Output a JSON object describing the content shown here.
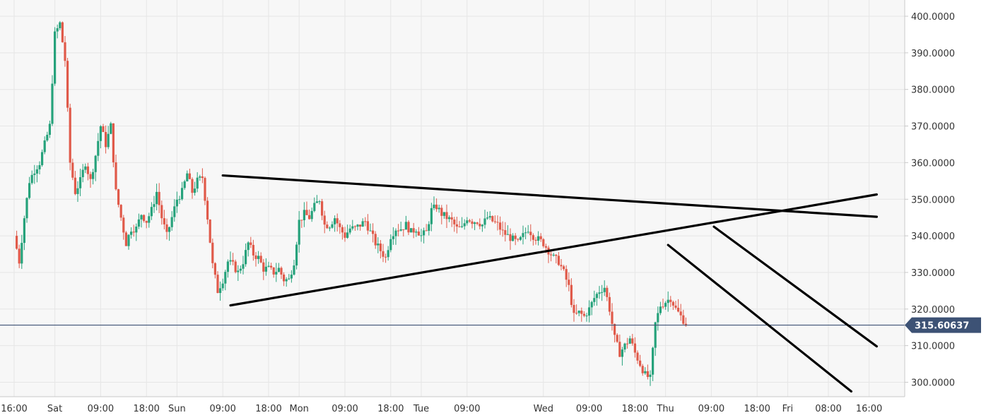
{
  "chart_data": {
    "type": "candlestick",
    "title": "",
    "xlabel": "",
    "ylabel": "",
    "ylim": [
      297,
      403
    ],
    "grid": true,
    "colors": {
      "up": "#26a27b",
      "down": "#e05a4a",
      "trendline": "#000000",
      "current_price_line": "#3d5275",
      "current_price_tag": "#3d5275",
      "grid": "#e6e6e6",
      "plot_background": "#f7f7f7"
    },
    "y_ticks": [
      "300.0000",
      "310.0000",
      "320.0000",
      "330.0000",
      "340.0000",
      "350.0000",
      "360.0000",
      "370.0000",
      "380.0000",
      "390.0000",
      "400.0000"
    ],
    "y_tick_values": [
      300,
      310,
      320,
      330,
      340,
      350,
      360,
      370,
      380,
      390,
      400
    ],
    "x_ticks": [
      {
        "label": "16:00",
        "hour": 0
      },
      {
        "label": "Sat",
        "hour": 8
      },
      {
        "label": "09:00",
        "hour": 17
      },
      {
        "label": "18:00",
        "hour": 26
      },
      {
        "label": "Sun",
        "hour": 32
      },
      {
        "label": "09:00",
        "hour": 41
      },
      {
        "label": "18:00",
        "hour": 50
      },
      {
        "label": "Mon",
        "hour": 56
      },
      {
        "label": "09:00",
        "hour": 65
      },
      {
        "label": "18:00",
        "hour": 74
      },
      {
        "label": "Tue",
        "hour": 80
      },
      {
        "label": "09:00",
        "hour": 89
      },
      {
        "label": "Wed",
        "hour": 104
      },
      {
        "label": "09:00",
        "hour": 113
      },
      {
        "label": "18:00",
        "hour": 122
      },
      {
        "label": "Thu",
        "hour": 128
      },
      {
        "label": "09:00",
        "hour": 137
      },
      {
        "label": "18:00",
        "hour": 146
      },
      {
        "label": "Fri",
        "hour": 152
      },
      {
        "label": "08:00",
        "hour": 160
      },
      {
        "label": "16:00",
        "hour": 168
      }
    ],
    "current_price": 315.60637,
    "current_price_label": "315.60637",
    "candle_hour_step": 0.5,
    "candle_close_anchors": [
      [
        0,
        340
      ],
      [
        1,
        333
      ],
      [
        2,
        345
      ],
      [
        3,
        355
      ],
      [
        4,
        358
      ],
      [
        5,
        360
      ],
      [
        6,
        365
      ],
      [
        7,
        370
      ],
      [
        8,
        395
      ],
      [
        9,
        398
      ],
      [
        10,
        388
      ],
      [
        11,
        360
      ],
      [
        12,
        352
      ],
      [
        13,
        355
      ],
      [
        14,
        360
      ],
      [
        15,
        355
      ],
      [
        16,
        362
      ],
      [
        17,
        370
      ],
      [
        18,
        365
      ],
      [
        19,
        370
      ],
      [
        20,
        352
      ],
      [
        21,
        345
      ],
      [
        22,
        338
      ],
      [
        23,
        342
      ],
      [
        24,
        342
      ],
      [
        25,
        346
      ],
      [
        26,
        344
      ],
      [
        27,
        347
      ],
      [
        28,
        352
      ],
      [
        29,
        345
      ],
      [
        30,
        340
      ],
      [
        31,
        345
      ],
      [
        32,
        350
      ],
      [
        33,
        352
      ],
      [
        34,
        357
      ],
      [
        35,
        352
      ],
      [
        36,
        355
      ],
      [
        37,
        356
      ],
      [
        38,
        345
      ],
      [
        39,
        332
      ],
      [
        40,
        325
      ],
      [
        41,
        328
      ],
      [
        42,
        333
      ],
      [
        43,
        332
      ],
      [
        44,
        330
      ],
      [
        45,
        333
      ],
      [
        46,
        338
      ],
      [
        47,
        335
      ],
      [
        48,
        334
      ],
      [
        49,
        331
      ],
      [
        50,
        331
      ],
      [
        51,
        330
      ],
      [
        52,
        331
      ],
      [
        53,
        328
      ],
      [
        54,
        328
      ],
      [
        55,
        333
      ],
      [
        56,
        344
      ],
      [
        57,
        346
      ],
      [
        58,
        345
      ],
      [
        59,
        348
      ],
      [
        60,
        350
      ],
      [
        61,
        343
      ],
      [
        62,
        343
      ],
      [
        63,
        345
      ],
      [
        64,
        342
      ],
      [
        65,
        340
      ],
      [
        66,
        342
      ],
      [
        67,
        342
      ],
      [
        68,
        343
      ],
      [
        69,
        344
      ],
      [
        70,
        341
      ],
      [
        71,
        338
      ],
      [
        72,
        336
      ],
      [
        73,
        334
      ],
      [
        74,
        340
      ],
      [
        75,
        342
      ],
      [
        76,
        342
      ],
      [
        77,
        343
      ],
      [
        78,
        341
      ],
      [
        79,
        342
      ],
      [
        80,
        340
      ],
      [
        81,
        341
      ],
      [
        82,
        347
      ],
      [
        83,
        348
      ],
      [
        84,
        346
      ],
      [
        85,
        345
      ],
      [
        86,
        344
      ],
      [
        87,
        342
      ],
      [
        88,
        342
      ],
      [
        89,
        345
      ],
      [
        90,
        344
      ],
      [
        91,
        344
      ],
      [
        92,
        343
      ],
      [
        93,
        345
      ],
      [
        94,
        344
      ],
      [
        95,
        343
      ],
      [
        96,
        341
      ],
      [
        97,
        340
      ],
      [
        98,
        339
      ],
      [
        99,
        338
      ],
      [
        100,
        340
      ],
      [
        101,
        342
      ],
      [
        102,
        340
      ],
      [
        103,
        339
      ],
      [
        104,
        338
      ],
      [
        105,
        336
      ],
      [
        106,
        334
      ],
      [
        107,
        333
      ],
      [
        108,
        330
      ],
      [
        109,
        326
      ],
      [
        110,
        318
      ],
      [
        111,
        319
      ],
      [
        112,
        318
      ],
      [
        113,
        320
      ],
      [
        114,
        323
      ],
      [
        115,
        325
      ],
      [
        116,
        326
      ],
      [
        117,
        320
      ],
      [
        118,
        312
      ],
      [
        119,
        308
      ],
      [
        120,
        310
      ],
      [
        121,
        312
      ],
      [
        122,
        308
      ],
      [
        123,
        305
      ],
      [
        124,
        302
      ],
      [
        125,
        301
      ],
      [
        126,
        316
      ],
      [
        127,
        321
      ],
      [
        128,
        322
      ],
      [
        129,
        323
      ],
      [
        130,
        320
      ],
      [
        131,
        318
      ],
      [
        132,
        316
      ]
    ],
    "annotations": [
      {
        "type": "trendline",
        "from": [
          41,
          356.5
        ],
        "to": [
          169.5,
          345.2
        ]
      },
      {
        "type": "trendline",
        "from": [
          42.5,
          321.0
        ],
        "to": [
          169.5,
          351.3
        ]
      },
      {
        "type": "trendline",
        "from": [
          137.5,
          342.5
        ],
        "to": [
          169.5,
          309.8
        ]
      },
      {
        "type": "trendline",
        "from": [
          128.5,
          337.5
        ],
        "to": [
          164.5,
          297.5
        ]
      }
    ]
  }
}
